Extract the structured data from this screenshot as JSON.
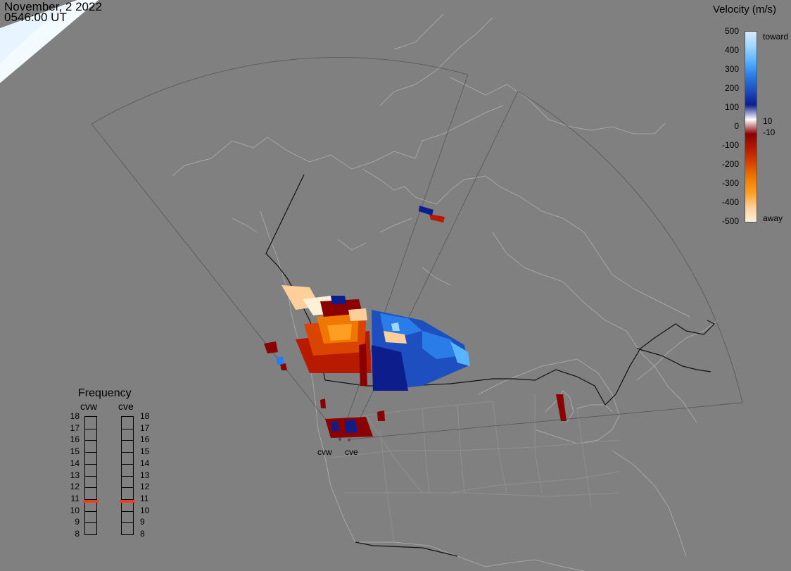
{
  "timestamp": {
    "date": "November, 2 2022",
    "time": "0546:00 UT"
  },
  "colorbar": {
    "title": "Velocity (m/s)",
    "ticks": [
      "500",
      "400",
      "300",
      "200",
      "100",
      "0",
      "-100",
      "-200",
      "-300",
      "-400",
      "-500"
    ],
    "toward_label": "toward",
    "away_label": "away",
    "pos_threshold_label": "10",
    "neg_threshold_label": "-10",
    "colors": [
      "#d6ecff",
      "#9fd6ff",
      "#58b4ff",
      "#2a7ce8",
      "#1d4fc0",
      "#0d1e8c",
      "#ffffff",
      "#8b0000",
      "#b81a00",
      "#d94400",
      "#f07800",
      "#ff9e20",
      "#ffcf9a",
      "#fff0d8"
    ]
  },
  "frequency_panel": {
    "title": "Frequency",
    "radars": [
      {
        "name": "cvw",
        "value_mhz": 10.8
      },
      {
        "name": "cve",
        "value_mhz": 10.8
      }
    ],
    "ticks": [
      "18",
      "17",
      "16",
      "15",
      "14",
      "13",
      "12",
      "11",
      "10",
      "9",
      "8"
    ],
    "marker_color": "#e8401a"
  },
  "radar_labels": [
    "cvw",
    "cve"
  ]
}
